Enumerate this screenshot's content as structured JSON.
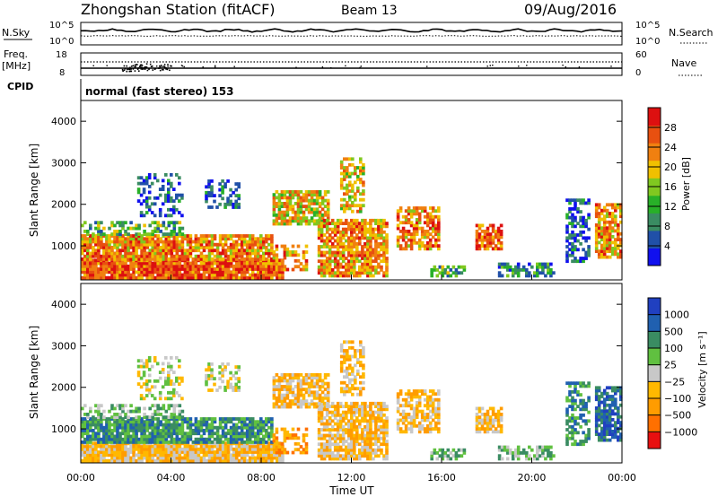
{
  "header": {
    "station": "Zhongshan Station (fitACF)",
    "beam": "Beam 13",
    "date": "09/Aug/2016"
  },
  "panel_labels": {
    "nsky": "N.Sky",
    "nsearch": "N.Search",
    "freq": "Freq.",
    "freq_unit": "[MHz]",
    "nave": "Nave",
    "cpid": "CPID",
    "cpid_value": "normal (fast stereo) 153"
  },
  "noise_ticks": {
    "left": [
      "10^5",
      "10^0"
    ],
    "right": [
      "10^5",
      "10^0"
    ]
  },
  "freq_ticks": {
    "left": [
      "18",
      "8"
    ],
    "right": [
      "60",
      "0"
    ]
  },
  "colors": {
    "power": [
      "#1010ee",
      "#2050a8",
      "#3a8c62",
      "#28b028",
      "#80c820",
      "#f0c000",
      "#f08010",
      "#e85010",
      "#dd1010"
    ],
    "velocity": [
      "#e81010",
      "#ff7000",
      "#ff9c00",
      "#ffb800",
      "#c8c8c8",
      "#60c040",
      "#3a8c62",
      "#2060b0",
      "#2040c0"
    ]
  },
  "chart_data": [
    {
      "type": "heatmap",
      "title": "Power",
      "ylabel": "Slant Range [km]",
      "ylim": [
        180,
        4500
      ],
      "xlim": [
        0,
        24
      ],
      "yticks": [
        "1000",
        "2000",
        "3000",
        "4000"
      ],
      "colorbar": {
        "label": "Power [dB]",
        "ticks": [
          "4",
          "8",
          "12",
          "16",
          "20",
          "24",
          "28"
        ],
        "range": [
          0,
          32
        ]
      }
    },
    {
      "type": "heatmap",
      "title": "Velocity",
      "ylabel": "Slant Range [km]",
      "xlabel": "Time UT",
      "ylim": [
        180,
        4500
      ],
      "xlim": [
        0,
        24
      ],
      "xticks": [
        "00:00",
        "04:00",
        "08:00",
        "12:00",
        "16:00",
        "20:00",
        "00:00"
      ],
      "yticks": [
        "1000",
        "2000",
        "3000",
        "4000"
      ],
      "colorbar": {
        "label": "Velocity [m s⁻¹]",
        "ticks": [
          "1000",
          "500",
          "100",
          "25",
          "−25",
          "−100",
          "−500",
          "−1000"
        ]
      }
    }
  ]
}
